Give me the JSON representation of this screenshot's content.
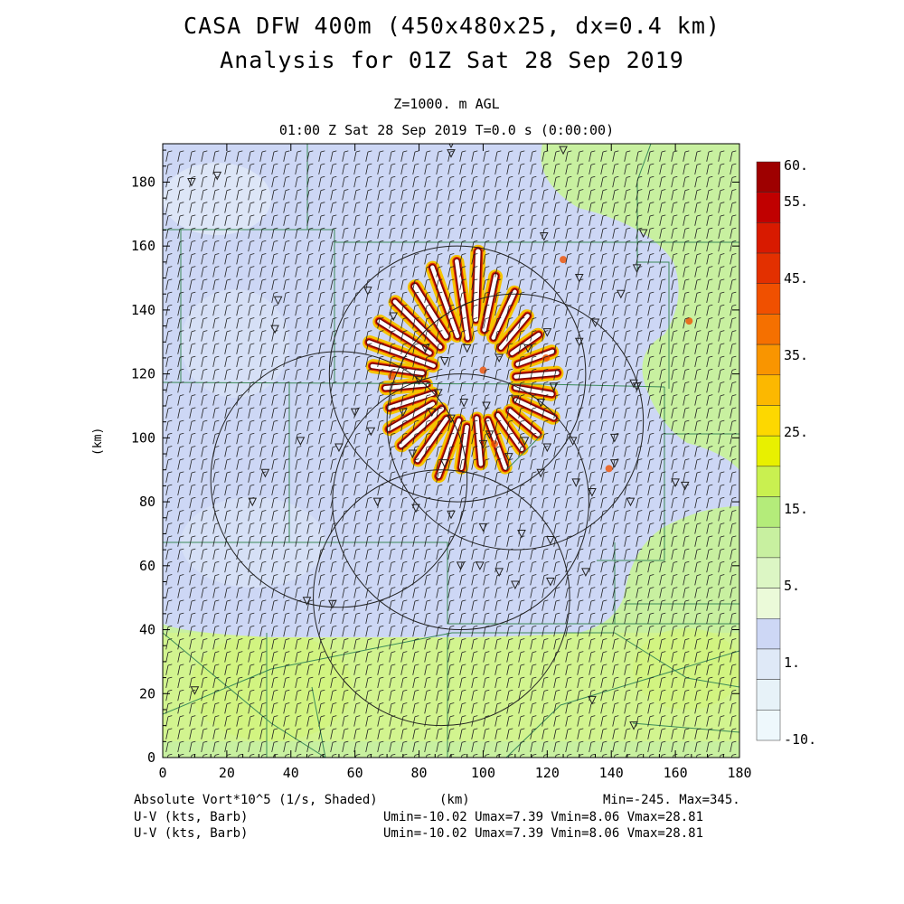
{
  "header": {
    "title_line1": "CASA DFW 400m (450x480x25, dx=0.4 km)",
    "title_line2": "Analysis for 01Z Sat 28 Sep 2019",
    "level": "Z=1000. m AGL",
    "time_line": "01:00 Z Sat 28 Sep 2019    T=0.0 s (0:00:00)"
  },
  "axes": {
    "x_ticks": [
      "0",
      "20",
      "40",
      "60",
      "80",
      "100",
      "120",
      "140",
      "160",
      "180"
    ],
    "y_ticks": [
      "0",
      "20",
      "40",
      "60",
      "80",
      "100",
      "120",
      "140",
      "160",
      "180"
    ],
    "x_label": "(km)",
    "y_label": "(km)",
    "x_range": [
      0,
      180
    ],
    "y_range": [
      0,
      192
    ]
  },
  "colorbar": {
    "labels": [
      "60.",
      "55.",
      "45.",
      "35.",
      "25.",
      "15.",
      "5.",
      "1.",
      "-10."
    ],
    "colors": [
      "#9e0000",
      "#c00000",
      "#d81a00",
      "#e33000",
      "#f05000",
      "#f57000",
      "#f99500",
      "#fcb800",
      "#fdd800",
      "#e8f000",
      "#c9f050",
      "#b4ec7a",
      "#c8f0a0",
      "#dcf6c4",
      "#ebfad9",
      "#cdd7f5",
      "#dfe9f7",
      "#e7f2f8",
      "#eef8fc"
    ]
  },
  "footer": {
    "field_label": "Absolute Vort*10^5 (1/s, Shaded)",
    "km_label": "(km)",
    "minmax": "Min=-245. Max=345.",
    "uv1_label": "U-V (kts, Barb)",
    "uv1_stats": "Umin=-10.02 Umax=7.39 Vmin=8.06 Vmax=28.81",
    "uv2_label": "U-V (kts, Barb)",
    "uv2_stats": "Umin=-10.02 Umax=7.39 Vmin=8.06 Vmax=28.81"
  },
  "map": {
    "radar_rings_center_km": [
      [
        92,
        120
      ],
      [
        110,
        105
      ],
      [
        93,
        80
      ],
      [
        55,
        87
      ],
      [
        87,
        50
      ]
    ],
    "radar_ring_radius_km": 40,
    "station_marks_km": [
      [
        9,
        180
      ],
      [
        17,
        182
      ],
      [
        90,
        189
      ],
      [
        90,
        192
      ],
      [
        125,
        190
      ],
      [
        36,
        143
      ],
      [
        35,
        134
      ],
      [
        64,
        146
      ],
      [
        72,
        138
      ],
      [
        82,
        128
      ],
      [
        88,
        124
      ],
      [
        95,
        128
      ],
      [
        80,
        118
      ],
      [
        86,
        114
      ],
      [
        94,
        111
      ],
      [
        101,
        110
      ],
      [
        110,
        112
      ],
      [
        118,
        111
      ],
      [
        122,
        116
      ],
      [
        105,
        125
      ],
      [
        114,
        128
      ],
      [
        120,
        133
      ],
      [
        130,
        130
      ],
      [
        135,
        136
      ],
      [
        60,
        108
      ],
      [
        65,
        102
      ],
      [
        75,
        108
      ],
      [
        84,
        108
      ],
      [
        90,
        106
      ],
      [
        102,
        101
      ],
      [
        113,
        99
      ],
      [
        120,
        97
      ],
      [
        128,
        99
      ],
      [
        141,
        100
      ],
      [
        147,
        117
      ],
      [
        43,
        99
      ],
      [
        55,
        97
      ],
      [
        78,
        95
      ],
      [
        88,
        92
      ],
      [
        100,
        98
      ],
      [
        108,
        94
      ],
      [
        118,
        89
      ],
      [
        129,
        86
      ],
      [
        141,
        92
      ],
      [
        160,
        86
      ],
      [
        32,
        89
      ],
      [
        28,
        80
      ],
      [
        67,
        80
      ],
      [
        79,
        78
      ],
      [
        90,
        76
      ],
      [
        100,
        72
      ],
      [
        112,
        70
      ],
      [
        121,
        68
      ],
      [
        134,
        83
      ],
      [
        146,
        80
      ],
      [
        93,
        60
      ],
      [
        99,
        60
      ],
      [
        105,
        58
      ],
      [
        110,
        54
      ],
      [
        121,
        55
      ],
      [
        132,
        58
      ],
      [
        45,
        49
      ],
      [
        53,
        48
      ],
      [
        10,
        21
      ],
      [
        134,
        18
      ],
      [
        147,
        10
      ],
      [
        163,
        85
      ],
      [
        148,
        116
      ],
      [
        148,
        153
      ],
      [
        130,
        150
      ],
      [
        119,
        163
      ],
      [
        143,
        145
      ],
      [
        150,
        164
      ]
    ]
  }
}
